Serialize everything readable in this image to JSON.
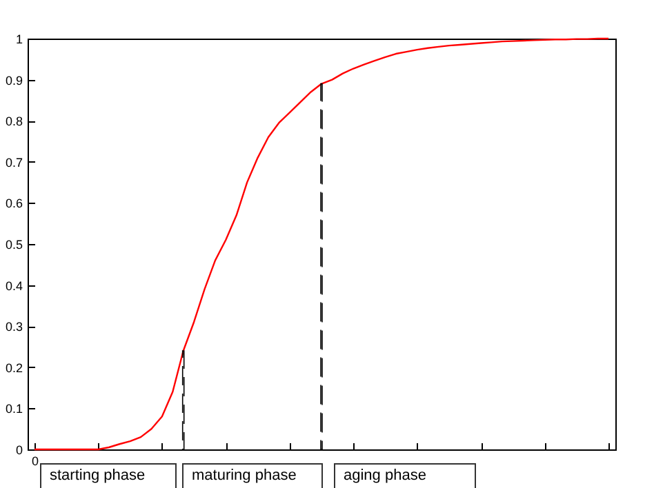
{
  "chart_data": {
    "type": "line",
    "categories": [
      "0",
      null,
      null,
      null,
      null,
      null,
      null,
      null,
      null,
      null,
      null,
      null,
      null,
      null,
      null,
      null,
      null,
      null,
      null,
      null,
      null,
      null,
      null,
      null,
      null,
      null,
      null,
      null,
      null,
      null,
      null,
      null,
      null,
      null,
      null,
      null,
      null,
      null,
      null,
      null,
      null,
      null,
      null,
      null,
      null,
      null,
      null,
      null,
      null,
      null,
      null,
      null,
      null,
      null,
      null
    ],
    "ylim": [
      0,
      1
    ],
    "yticks": [
      0,
      0.1,
      0.2,
      0.3,
      0.4,
      0.5,
      0.6,
      0.7,
      0.8,
      0.9,
      1
    ],
    "grid": false,
    "annotations": [
      "starting phase",
      "maturing phase",
      "aging phase"
    ],
    "series": [
      {
        "color": "#ff0000",
        "line_style": "solid",
        "values": [
          0,
          0,
          0,
          0,
          0,
          0,
          0,
          0.005,
          0.013,
          0.02,
          0.03,
          0.05,
          0.08,
          0.14,
          0.24,
          0.31,
          0.39,
          0.46,
          0.51,
          0.57,
          0.65,
          0.71,
          0.76,
          0.795,
          0.82,
          0.845,
          0.87,
          0.89,
          0.9,
          0.915,
          0.927,
          0.937,
          0.946,
          0.955,
          0.963,
          0.968,
          0.973,
          0.977,
          0.98,
          0.983,
          0.985,
          0.987,
          0.989,
          0.991,
          0.993,
          0.994,
          0.995,
          0.996,
          0.997,
          0.998,
          0.998,
          0.999,
          0.999,
          1,
          1
        ]
      },
      {
        "type": "bar",
        "color": "#000000",
        "line_style": "dashed",
        "values": [
          null,
          null,
          null,
          null,
          null,
          null,
          null,
          null,
          null,
          null,
          null,
          null,
          null,
          null,
          0.24,
          null,
          null,
          null,
          null,
          null,
          null,
          null,
          null,
          null,
          null,
          null,
          null,
          null,
          null,
          null,
          null,
          null,
          null,
          null,
          null,
          null,
          null,
          null,
          null,
          null,
          null,
          null,
          null,
          null,
          null,
          null,
          null,
          null,
          null,
          null,
          null,
          null,
          null,
          null,
          null
        ]
      },
      {
        "type": "bar",
        "color": "#000000",
        "line_style": "dashed",
        "values": [
          null,
          null,
          null,
          null,
          null,
          null,
          null,
          null,
          null,
          null,
          null,
          null,
          null,
          null,
          null,
          null,
          null,
          null,
          null,
          null,
          null,
          null,
          null,
          null,
          null,
          null,
          null,
          0.89,
          null,
          null,
          null,
          null,
          null,
          null,
          null,
          null,
          null,
          null,
          null,
          null,
          null,
          null,
          null,
          null,
          null,
          null,
          null,
          null,
          null,
          null,
          null,
          null,
          null,
          null,
          null
        ]
      }
    ]
  }
}
